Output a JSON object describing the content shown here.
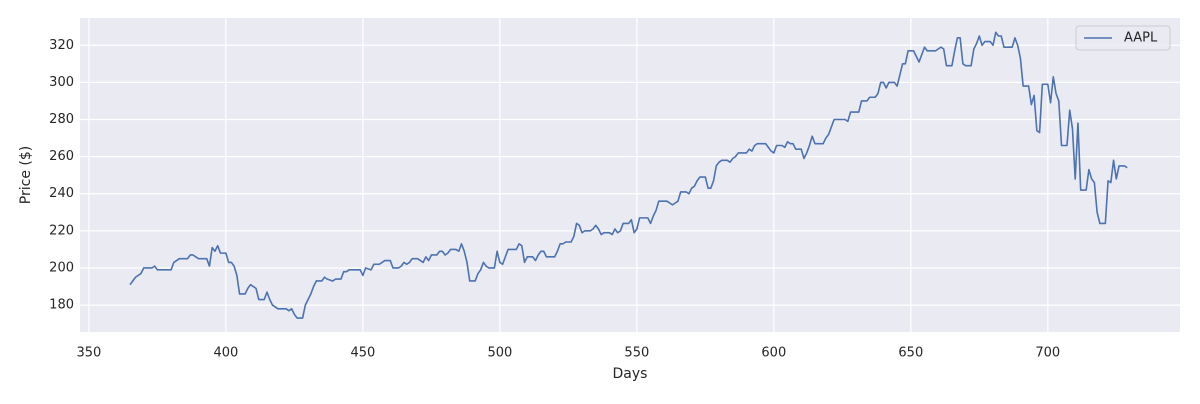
{
  "chart_data": {
    "type": "line",
    "xlabel": "Days",
    "ylabel": "Price ($)",
    "x": [
      365,
      366,
      367,
      369,
      370,
      372,
      373,
      374,
      375,
      377,
      380,
      381,
      383,
      386,
      387,
      388,
      390,
      393,
      394,
      395,
      396,
      397,
      398,
      400,
      401,
      402,
      403,
      404,
      405,
      407,
      408,
      409,
      411,
      412,
      414,
      415,
      416,
      417,
      418,
      419,
      422,
      423,
      424,
      425,
      426,
      428,
      429,
      430,
      431,
      432,
      433,
      435,
      436,
      437,
      439,
      440,
      442,
      443,
      444,
      445,
      449,
      450,
      451,
      453,
      454,
      456,
      457,
      458,
      460,
      461,
      463,
      464,
      465,
      466,
      467,
      468,
      470,
      471,
      472,
      473,
      474,
      475,
      477,
      478,
      479,
      480,
      481,
      482,
      484,
      485,
      486,
      487,
      488,
      489,
      491,
      492,
      493,
      494,
      495,
      496,
      498,
      499,
      500,
      501,
      502,
      503,
      506,
      507,
      508,
      509,
      510,
      512,
      513,
      514,
      515,
      516,
      517,
      520,
      521,
      522,
      523,
      524,
      526,
      527,
      528,
      529,
      530,
      531,
      533,
      534,
      535,
      536,
      537,
      538,
      540,
      541,
      542,
      543,
      544,
      545,
      547,
      548,
      549,
      550,
      551,
      554,
      555,
      556,
      557,
      558,
      561,
      562,
      563,
      564,
      565,
      566,
      568,
      569,
      570,
      571,
      572,
      573,
      575,
      576,
      577,
      578,
      579,
      580,
      581,
      583,
      584,
      585,
      586,
      587,
      589,
      590,
      591,
      592,
      593,
      594,
      597,
      598,
      599,
      600,
      601,
      603,
      604,
      605,
      606,
      607,
      608,
      610,
      611,
      612,
      613,
      614,
      615,
      618,
      619,
      620,
      621,
      622,
      626,
      627,
      628,
      631,
      632,
      634,
      635,
      637,
      638,
      639,
      640,
      641,
      642,
      644,
      645,
      646,
      647,
      648,
      649,
      651,
      652,
      653,
      654,
      655,
      656,
      659,
      660,
      661,
      662,
      663,
      665,
      666,
      667,
      668,
      669,
      670,
      672,
      673,
      674,
      675,
      676,
      677,
      679,
      680,
      681,
      682,
      683,
      684,
      687,
      688,
      689,
      690,
      691,
      693,
      694,
      695,
      696,
      697,
      698,
      700,
      701,
      702,
      703,
      704,
      705,
      707,
      708,
      709,
      710,
      711,
      712,
      714,
      715,
      716,
      717,
      718,
      719,
      721,
      722,
      723,
      724,
      725,
      726,
      728,
      729
    ],
    "series": [
      {
        "name": "AAPL",
        "color": "#4c72b0",
        "values": [
          191,
          193,
          195,
          197,
          200,
          200,
          200,
          201,
          199,
          199,
          199,
          203,
          205,
          205,
          207,
          207,
          205,
          205,
          201,
          211,
          209,
          212,
          208,
          208,
          203,
          203,
          201,
          196,
          186,
          186,
          189,
          191,
          189,
          183,
          183,
          187,
          183,
          180,
          179,
          178,
          178,
          177,
          178,
          175,
          173,
          173,
          180,
          183,
          186,
          190,
          193,
          193,
          195,
          194,
          193,
          194,
          194,
          198,
          198,
          199,
          199,
          196,
          200,
          199,
          202,
          202,
          203,
          204,
          204,
          200,
          200,
          201,
          203,
          202,
          203,
          205,
          205,
          204,
          203,
          206,
          204,
          207,
          207,
          209,
          209,
          207,
          208,
          210,
          210,
          209,
          213,
          209,
          203,
          193,
          193,
          197,
          199,
          203,
          201,
          200,
          200,
          209,
          203,
          202,
          206,
          210,
          210,
          213,
          212,
          203,
          206,
          206,
          204,
          207,
          209,
          209,
          206,
          206,
          209,
          213,
          213,
          214,
          214,
          217,
          224,
          223,
          219,
          220,
          220,
          221,
          223,
          221,
          218,
          219,
          219,
          218,
          221,
          219,
          220,
          224,
          224,
          226,
          219,
          221,
          227,
          227,
          224,
          228,
          231,
          236,
          236,
          235,
          234,
          235,
          236,
          241,
          241,
          240,
          243,
          244,
          247,
          249,
          249,
          243,
          243,
          247,
          255,
          257,
          258,
          258,
          257,
          259,
          260,
          262,
          262,
          262,
          264,
          263,
          266,
          267,
          267,
          265,
          263,
          262,
          266,
          266,
          265,
          268,
          267,
          267,
          264,
          264,
          259,
          262,
          266,
          271,
          267,
          267,
          270,
          272,
          276,
          280,
          280,
          279,
          284,
          284,
          290,
          290,
          292,
          292,
          294,
          300,
          300,
          297,
          300,
          300,
          298,
          304,
          310,
          310,
          317,
          317,
          314,
          311,
          315,
          319,
          317,
          317,
          318,
          319,
          318,
          309,
          309,
          317,
          324,
          324,
          310,
          309,
          309,
          318,
          321,
          325,
          320,
          322,
          322,
          320,
          327,
          325,
          325,
          319,
          319,
          324,
          320,
          313,
          298,
          298,
          288,
          293,
          274,
          273,
          299,
          299,
          289,
          303,
          294,
          290,
          266,
          266,
          285,
          275,
          248,
          278,
          242,
          242,
          253,
          248,
          246,
          230,
          224,
          224,
          247,
          246,
          258,
          248,
          255,
          255,
          254
        ]
      }
    ],
    "xlim": [
      346.75,
      748.25
    ],
    "xticks": [
      350,
      400,
      450,
      500,
      550,
      600,
      650,
      700
    ],
    "ylim": [
      165.5,
      334.7
    ],
    "yticks": [
      180,
      200,
      220,
      240,
      260,
      280,
      300,
      320
    ],
    "grid": true,
    "legend": "upper right"
  }
}
